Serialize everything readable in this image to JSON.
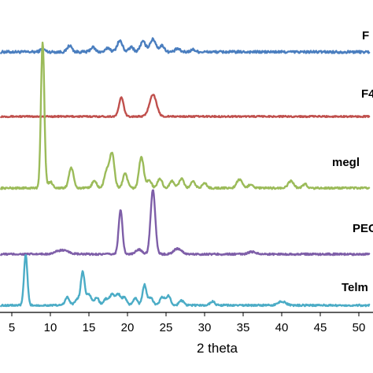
{
  "chart_data": {
    "type": "line",
    "title": "",
    "xlabel": "2 theta",
    "ylabel": "",
    "xlim": [
      3.5,
      51.5
    ],
    "x_ticks": [
      5,
      10,
      15,
      20,
      25,
      30,
      35,
      40,
      45,
      50
    ],
    "tick_labels": [
      "5",
      "10",
      "15",
      "20",
      "25",
      "30",
      "35",
      "40",
      "45",
      "50"
    ],
    "grid": false,
    "legend": "none",
    "series": [
      {
        "name": "F",
        "color": "#4a7ebf",
        "baseline_y": 66,
        "noise": 1.6,
        "peaks": [
          [
            9.0,
            4,
            0.3
          ],
          [
            12.5,
            8,
            0.3
          ],
          [
            15.5,
            6,
            0.3
          ],
          [
            17.5,
            5,
            0.3
          ],
          [
            19.0,
            14,
            0.35
          ],
          [
            20.5,
            6,
            0.3
          ],
          [
            22.0,
            13,
            0.35
          ],
          [
            23.3,
            16,
            0.4
          ],
          [
            24.5,
            8,
            0.3
          ],
          [
            26.5,
            4,
            0.3
          ],
          [
            28.5,
            3,
            0.3
          ]
        ]
      },
      {
        "name": "F4",
        "color": "#c0504d",
        "baseline_y": 148,
        "noise": 0.9,
        "peaks": [
          [
            19.2,
            24,
            0.3
          ],
          [
            23.3,
            28,
            0.45
          ]
        ]
      },
      {
        "name": "megl",
        "color": "#9bbb59",
        "baseline_y": 239,
        "noise": 1.2,
        "peaks": [
          [
            9.0,
            185,
            0.22
          ],
          [
            10.0,
            8,
            0.3
          ],
          [
            12.7,
            26,
            0.3
          ],
          [
            15.7,
            9,
            0.3
          ],
          [
            17.3,
            22,
            0.3
          ],
          [
            18.0,
            44,
            0.3
          ],
          [
            19.7,
            18,
            0.3
          ],
          [
            21.8,
            40,
            0.3
          ],
          [
            22.8,
            10,
            0.3
          ],
          [
            24.2,
            12,
            0.3
          ],
          [
            25.8,
            9,
            0.3
          ],
          [
            27.0,
            12,
            0.3
          ],
          [
            28.5,
            8,
            0.3
          ],
          [
            30.0,
            6,
            0.3
          ],
          [
            34.5,
            11,
            0.35
          ],
          [
            36.0,
            5,
            0.3
          ],
          [
            41.2,
            9,
            0.35
          ],
          [
            43.0,
            5,
            0.3
          ]
        ]
      },
      {
        "name": "PEC",
        "color": "#7e5ea8",
        "baseline_y": 323,
        "noise": 1.1,
        "peaks": [
          [
            11.5,
            5,
            0.8
          ],
          [
            19.1,
            56,
            0.25
          ],
          [
            21.5,
            6,
            0.4
          ],
          [
            23.3,
            82,
            0.3
          ],
          [
            26.5,
            7,
            0.5
          ],
          [
            36.2,
            3,
            0.5
          ]
        ]
      },
      {
        "name": "Telm",
        "color": "#4bacc6",
        "baseline_y": 388,
        "noise": 1.1,
        "peaks": [
          [
            6.8,
            64,
            0.22
          ],
          [
            12.2,
            10,
            0.3
          ],
          [
            13.5,
            8,
            0.3
          ],
          [
            14.2,
            42,
            0.25
          ],
          [
            15.0,
            14,
            0.3
          ],
          [
            16.0,
            10,
            0.3
          ],
          [
            17.2,
            8,
            0.3
          ],
          [
            18.0,
            14,
            0.3
          ],
          [
            18.8,
            14,
            0.3
          ],
          [
            19.6,
            10,
            0.3
          ],
          [
            21.0,
            9,
            0.3
          ],
          [
            22.2,
            26,
            0.25
          ],
          [
            23.0,
            10,
            0.3
          ],
          [
            24.5,
            10,
            0.3
          ],
          [
            25.3,
            12,
            0.3
          ],
          [
            27.0,
            6,
            0.3
          ],
          [
            31.0,
            5,
            0.3
          ],
          [
            40.0,
            5,
            0.5
          ]
        ]
      }
    ]
  }
}
